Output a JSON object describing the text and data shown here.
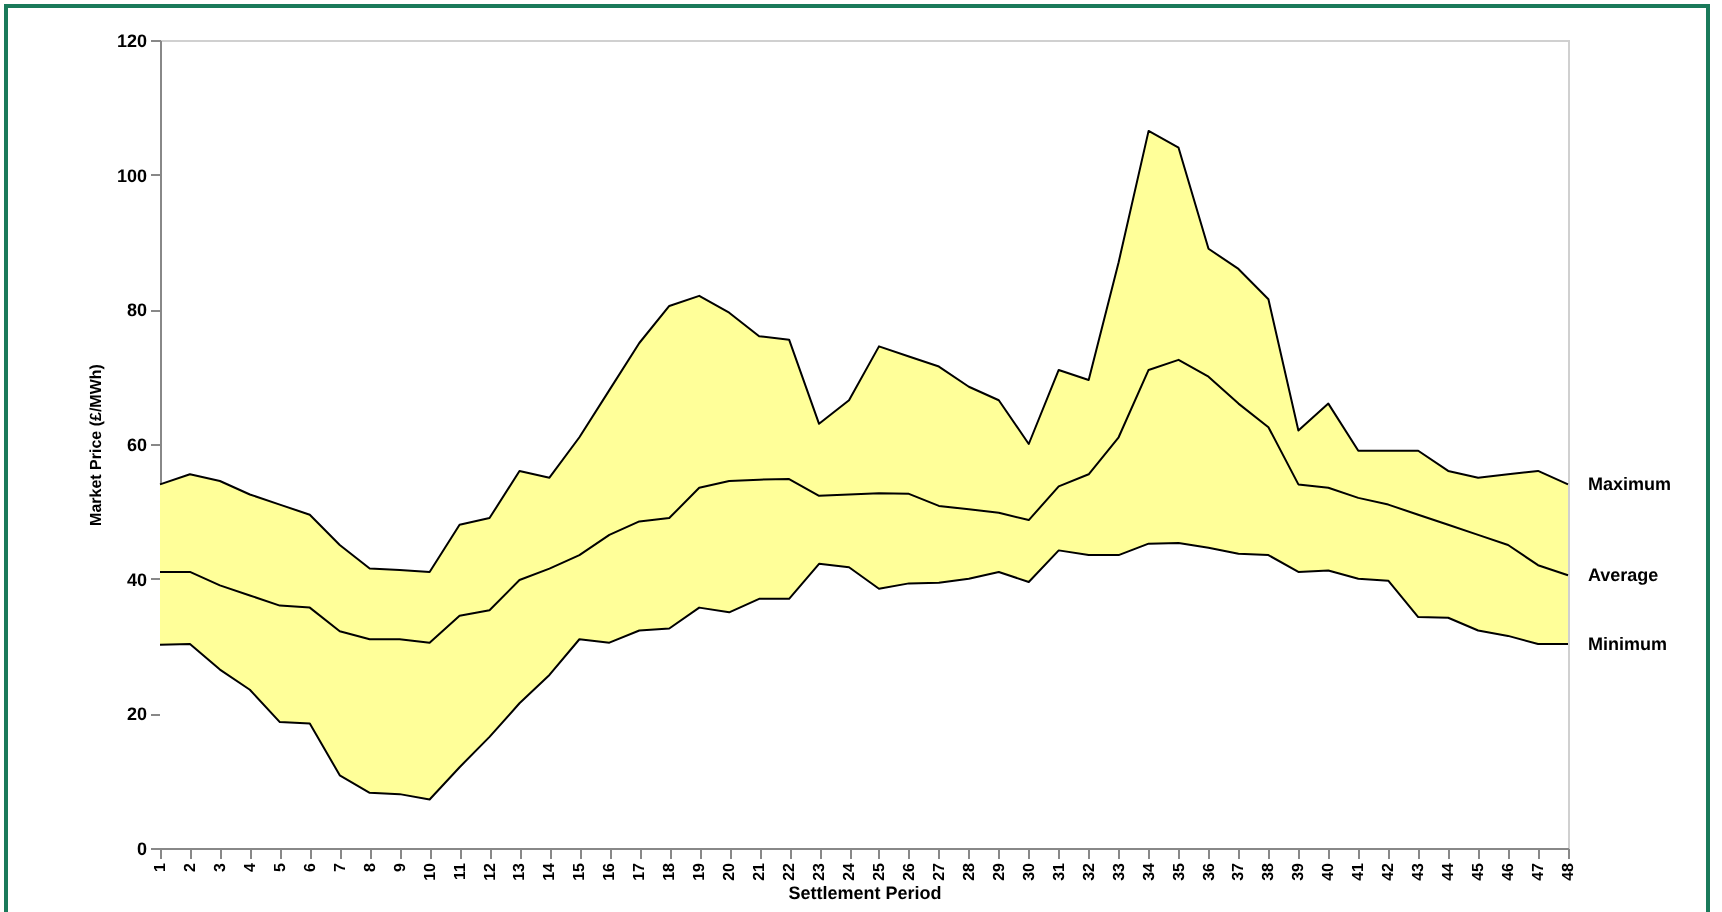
{
  "chart_data": {
    "type": "area",
    "xlabel": "Settlement Period",
    "ylabel": "Market Price (£/MWh)",
    "categories": [
      "1",
      "2",
      "3",
      "4",
      "5",
      "6",
      "7",
      "8",
      "9",
      "10",
      "11",
      "12",
      "13",
      "14",
      "15",
      "16",
      "17",
      "18",
      "19",
      "20",
      "21",
      "22",
      "23",
      "24",
      "25",
      "26",
      "27",
      "28",
      "29",
      "30",
      "31",
      "32",
      "33",
      "34",
      "35",
      "36",
      "37",
      "38",
      "39",
      "40",
      "41",
      "42",
      "43",
      "44",
      "45",
      "46",
      "47",
      "48"
    ],
    "series": [
      {
        "name": "Maximum",
        "color": "#ffff99",
        "values": [
          54,
          55.5,
          54.5,
          52.5,
          51,
          49.5,
          45,
          41.5,
          41.3,
          41,
          48,
          49,
          56,
          55,
          61,
          68,
          75,
          80.5,
          82,
          79.5,
          76,
          75.5,
          63,
          66.5,
          74.5,
          73,
          71.5,
          68.5,
          66.5,
          60,
          71,
          69.5,
          87,
          106.5,
          104,
          89,
          86,
          81.5,
          62,
          66,
          59,
          59,
          59,
          56,
          55,
          55.5,
          56,
          54
        ]
      },
      {
        "name": "Minimum",
        "color": "#ffffff",
        "values": [
          30.2,
          30.3,
          26.5,
          23.5,
          18.7,
          18.5,
          10.8,
          8.2,
          8,
          7.2,
          12,
          16.5,
          21.5,
          25.7,
          31,
          30.5,
          32.3,
          32.6,
          35.7,
          35,
          37,
          37,
          42.2,
          41.7,
          38.5,
          39.3,
          39.4,
          40,
          41,
          39.5,
          44.2,
          43.5,
          43.5,
          45.2,
          45.3,
          44.6,
          43.7,
          43.5,
          41,
          41.2,
          40,
          39.7,
          34.3,
          34.2,
          32.3,
          31.5,
          30.3,
          30.3
        ]
      },
      {
        "name": "Average",
        "type": "line",
        "color": "#000000",
        "values": [
          41,
          41,
          39,
          37.5,
          36,
          35.7,
          32.2,
          31,
          31,
          30.5,
          34.5,
          35.3,
          39.8,
          41.5,
          43.5,
          46.5,
          48.5,
          49,
          53.5,
          54.5,
          54.7,
          54.8,
          52.3,
          52.5,
          52.7,
          52.6,
          50.8,
          50.3,
          49.8,
          48.7,
          53.7,
          55.5,
          61,
          71,
          72.5,
          70,
          66,
          62.5,
          54,
          53.5,
          52,
          51,
          49.5,
          48,
          46.5,
          45,
          42,
          40.5
        ]
      }
    ],
    "ylim": [
      0,
      120
    ],
    "yticks": [
      0,
      20,
      40,
      60,
      80,
      100,
      120
    ],
    "grid": false,
    "marker": "none",
    "line_style": "solid"
  }
}
